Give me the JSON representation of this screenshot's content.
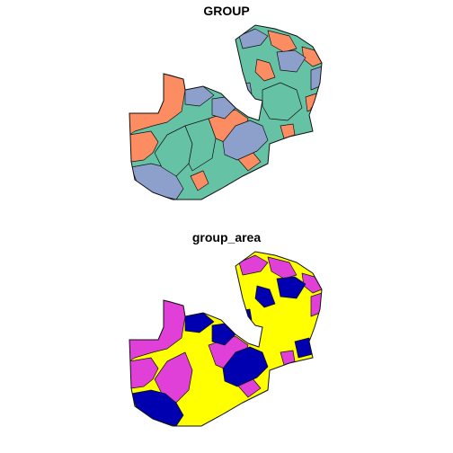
{
  "panels": [
    {
      "title": "GROUP"
    },
    {
      "title": "group_area"
    }
  ],
  "palette_group": {
    "orange": "#fc8d62",
    "teal": "#66c2a5",
    "blue": "#8da0cb"
  },
  "palette_group_area": {
    "yellow": "#ffff00",
    "magenta": "#e040d8",
    "navy": "#0000b0"
  }
}
